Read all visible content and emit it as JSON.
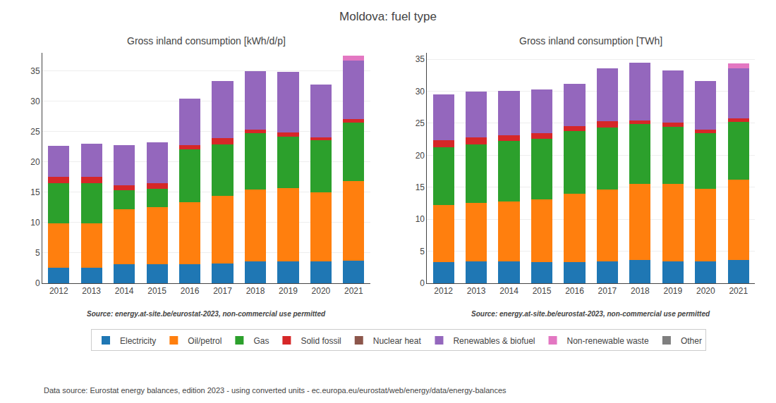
{
  "title": "Moldova: fuel type",
  "legend": "bottom",
  "annotations": [
    "Data source: Eurostat energy balances, edition 2023 - using converted units - ec.europa.eu/eurostat/web/energy/data/energy-balances"
  ],
  "chart_data": [
    {
      "type": "bar",
      "stacked": true,
      "grid": true,
      "title": "Gross inland consumption [kWh/d/p]",
      "annotations": [
        "Source: energy.at-site.be/eurostat-2023, non-commercial use permitted"
      ],
      "categories": [
        2012,
        2013,
        2014,
        2015,
        2016,
        2017,
        2018,
        2019,
        2020,
        2021
      ],
      "series": [
        {
          "name": "Electricity",
          "color": "#1f77b4",
          "values": [
            2.5,
            2.6,
            3.1,
            3.1,
            3.1,
            3.3,
            3.6,
            3.6,
            3.6,
            3.7
          ]
        },
        {
          "name": "Oil/petrol",
          "color": "#ff7f0e",
          "values": [
            7.4,
            7.3,
            9.1,
            9.4,
            10.3,
            11.1,
            11.9,
            12.1,
            11.4,
            13.2
          ]
        },
        {
          "name": "Gas",
          "color": "#2ca02c",
          "values": [
            6.6,
            6.6,
            3.1,
            3.1,
            8.7,
            8.5,
            9.3,
            8.5,
            8.6,
            9.6
          ]
        },
        {
          "name": "Solid fossil",
          "color": "#d62728",
          "values": [
            1.0,
            1.0,
            0.9,
            0.9,
            0.7,
            1.0,
            0.5,
            0.7,
            0.5,
            0.6
          ]
        },
        {
          "name": "Nuclear heat",
          "color": "#8c564b",
          "values": [
            0.0,
            0.0,
            0.0,
            0.0,
            0.0,
            0.0,
            0.0,
            0.0,
            0.0,
            0.0
          ]
        },
        {
          "name": "Renewables & biofuel",
          "color": "#9467bd",
          "values": [
            5.2,
            5.5,
            6.6,
            6.7,
            7.7,
            9.4,
            9.7,
            10.0,
            8.7,
            9.6
          ]
        },
        {
          "name": "Non-renewable waste",
          "color": "#e377c2",
          "values": [
            0.0,
            0.0,
            0.0,
            0.0,
            0.0,
            0.0,
            0.0,
            0.0,
            0.0,
            0.8
          ]
        },
        {
          "name": "Other",
          "color": "#7f7f7f",
          "values": [
            0.0,
            0.0,
            0.0,
            0.0,
            0.0,
            0.0,
            0.0,
            0.0,
            0.0,
            0.0
          ]
        }
      ],
      "ylim": [
        0,
        38
      ],
      "yticks": [
        0,
        5,
        10,
        15,
        20,
        25,
        30,
        35
      ]
    },
    {
      "type": "bar",
      "stacked": true,
      "grid": true,
      "title": "Gross inland consumption [TWh]",
      "annotations": [
        "Source: energy.at-site.be/eurostat-2023, non-commercial use permitted"
      ],
      "categories": [
        2012,
        2013,
        2014,
        2015,
        2016,
        2017,
        2018,
        2019,
        2020,
        2021
      ],
      "series": [
        {
          "name": "Electricity",
          "color": "#1f77b4",
          "values": [
            3.3,
            3.4,
            3.4,
            3.3,
            3.3,
            3.4,
            3.6,
            3.4,
            3.4,
            3.6
          ]
        },
        {
          "name": "Oil/petrol",
          "color": "#ff7f0e",
          "values": [
            8.9,
            9.1,
            9.4,
            9.8,
            10.7,
            11.2,
            11.9,
            12.1,
            11.3,
            12.6
          ]
        },
        {
          "name": "Gas",
          "color": "#2ca02c",
          "values": [
            9.0,
            9.2,
            9.4,
            9.5,
            9.8,
            9.7,
            9.4,
            8.9,
            8.8,
            9.0
          ]
        },
        {
          "name": "Solid fossil",
          "color": "#d62728",
          "values": [
            1.1,
            1.1,
            0.9,
            0.9,
            0.7,
            1.0,
            0.5,
            0.7,
            0.5,
            0.6
          ]
        },
        {
          "name": "Nuclear heat",
          "color": "#8c564b",
          "values": [
            0.0,
            0.0,
            0.0,
            0.0,
            0.0,
            0.0,
            0.0,
            0.0,
            0.0,
            0.0
          ]
        },
        {
          "name": "Renewables & biofuel",
          "color": "#9467bd",
          "values": [
            7.2,
            7.2,
            7.0,
            6.8,
            6.7,
            8.3,
            9.1,
            8.1,
            7.6,
            7.8
          ]
        },
        {
          "name": "Non-renewable waste",
          "color": "#e377c2",
          "values": [
            0.0,
            0.0,
            0.0,
            0.0,
            0.0,
            0.0,
            0.0,
            0.0,
            0.0,
            0.8
          ]
        },
        {
          "name": "Other",
          "color": "#7f7f7f",
          "values": [
            0.0,
            0.0,
            0.0,
            0.0,
            0.0,
            0.0,
            0.0,
            0.0,
            0.0,
            0.0
          ]
        }
      ],
      "ylim": [
        0,
        36
      ],
      "yticks": [
        0,
        5,
        10,
        15,
        20,
        25,
        30,
        35
      ]
    }
  ]
}
